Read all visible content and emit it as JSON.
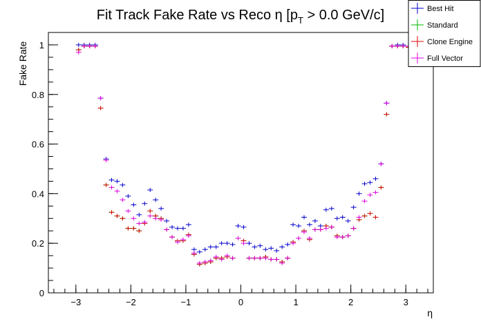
{
  "chart_data": {
    "type": "scatter",
    "title": "Fit Track Fake Rate vs Reco η [p_T > 0.0 GeV/c]",
    "title_main": "Fit Track Fake Rate vs Reco η [p",
    "title_sub": "T",
    "title_tail": " > 0.0 GeV/c]",
    "xlabel": "η",
    "ylabel": "Fake Rate",
    "xlim": [
      -3.5,
      3.5
    ],
    "ylim": [
      0,
      1.05
    ],
    "xticks": [
      -3,
      -2,
      -1,
      0,
      1,
      2,
      3
    ],
    "xtick_labels": [
      "−3",
      "−2",
      "−1",
      "0",
      "1",
      "2",
      "3"
    ],
    "yticks": [
      0,
      0.2,
      0.4,
      0.6,
      0.8,
      1
    ],
    "ytick_labels": [
      "0",
      "0.2",
      "0.4",
      "0.6",
      "0.8",
      "1"
    ],
    "bin_half_width": 0.05,
    "legend_position": "top-right",
    "series": [
      {
        "name": "Best Hit",
        "color": "#0000cc",
        "points": [
          [
            -2.95,
            1.0
          ],
          [
            -2.85,
            1.0
          ],
          [
            -2.75,
            1.0
          ],
          [
            -2.65,
            1.0
          ],
          [
            -2.55,
            0.785
          ],
          [
            -2.45,
            0.54
          ],
          [
            -2.35,
            0.455
          ],
          [
            -2.25,
            0.45
          ],
          [
            -2.15,
            0.435
          ],
          [
            -2.05,
            0.39
          ],
          [
            -1.95,
            0.355
          ],
          [
            -1.85,
            0.315
          ],
          [
            -1.75,
            0.36
          ],
          [
            -1.65,
            0.415
          ],
          [
            -1.55,
            0.375
          ],
          [
            -1.45,
            0.34
          ],
          [
            -1.35,
            0.29
          ],
          [
            -1.25,
            0.265
          ],
          [
            -1.15,
            0.26
          ],
          [
            -1.05,
            0.26
          ],
          [
            -0.95,
            0.275
          ],
          [
            -0.85,
            0.175
          ],
          [
            -0.75,
            0.165
          ],
          [
            -0.65,
            0.175
          ],
          [
            -0.55,
            0.185
          ],
          [
            -0.45,
            0.185
          ],
          [
            -0.35,
            0.2
          ],
          [
            -0.25,
            0.2
          ],
          [
            -0.15,
            0.195
          ],
          [
            -0.05,
            0.27
          ],
          [
            0.05,
            0.265
          ],
          [
            0.15,
            0.2
          ],
          [
            0.25,
            0.185
          ],
          [
            0.35,
            0.19
          ],
          [
            0.45,
            0.175
          ],
          [
            0.55,
            0.18
          ],
          [
            0.65,
            0.17
          ],
          [
            0.75,
            0.185
          ],
          [
            0.85,
            0.195
          ],
          [
            0.95,
            0.275
          ],
          [
            1.05,
            0.27
          ],
          [
            1.15,
            0.305
          ],
          [
            1.25,
            0.275
          ],
          [
            1.35,
            0.29
          ],
          [
            1.45,
            0.27
          ],
          [
            1.55,
            0.335
          ],
          [
            1.65,
            0.34
          ],
          [
            1.75,
            0.3
          ],
          [
            1.85,
            0.305
          ],
          [
            1.95,
            0.29
          ],
          [
            2.05,
            0.345
          ],
          [
            2.15,
            0.4
          ],
          [
            2.25,
            0.44
          ],
          [
            2.35,
            0.445
          ],
          [
            2.45,
            0.46
          ],
          [
            2.55,
            0.52
          ],
          [
            2.65,
            0.765
          ],
          [
            2.75,
            0.995
          ],
          [
            2.85,
            1.0
          ],
          [
            2.95,
            1.0
          ],
          [
            3.05,
            0.995
          ]
        ]
      },
      {
        "name": "Standard",
        "color": "#00bb00",
        "points": [
          [
            -2.95,
            0.98
          ],
          [
            -2.85,
            0.995
          ],
          [
            -2.75,
            0.995
          ],
          [
            -2.65,
            0.995
          ],
          [
            -2.55,
            0.745
          ],
          [
            -2.45,
            0.435
          ],
          [
            -2.35,
            0.325
          ],
          [
            -2.25,
            0.31
          ],
          [
            -2.15,
            0.3
          ],
          [
            -2.05,
            0.26
          ],
          [
            -1.95,
            0.26
          ],
          [
            -1.85,
            0.25
          ],
          [
            -1.75,
            0.28
          ],
          [
            -1.65,
            0.33
          ],
          [
            -1.55,
            0.31
          ],
          [
            -1.45,
            0.3
          ],
          [
            -1.35,
            0.255
          ],
          [
            -1.25,
            0.225
          ],
          [
            -1.15,
            0.21
          ],
          [
            -1.05,
            0.21
          ],
          [
            -0.95,
            0.235
          ],
          [
            -0.85,
            0.155
          ],
          [
            -0.75,
            0.115
          ],
          [
            -0.65,
            0.12
          ],
          [
            -0.55,
            0.125
          ],
          [
            -0.45,
            0.14
          ],
          [
            -0.35,
            0.14
          ],
          [
            -0.25,
            0.145
          ],
          [
            -0.15,
            0.14
          ],
          [
            -0.05,
            0.22
          ],
          [
            0.05,
            0.21
          ],
          [
            0.15,
            0.14
          ],
          [
            0.25,
            0.14
          ],
          [
            0.35,
            0.14
          ],
          [
            0.45,
            0.145
          ],
          [
            0.55,
            0.135
          ],
          [
            0.65,
            0.135
          ],
          [
            0.75,
            0.125
          ],
          [
            0.85,
            0.14
          ],
          [
            0.95,
            0.205
          ],
          [
            1.05,
            0.22
          ],
          [
            1.15,
            0.25
          ],
          [
            1.25,
            0.215
          ],
          [
            1.35,
            0.255
          ],
          [
            1.45,
            0.255
          ],
          [
            1.55,
            0.27
          ],
          [
            1.65,
            0.265
          ],
          [
            1.75,
            0.23
          ],
          [
            1.85,
            0.225
          ],
          [
            1.95,
            0.23
          ],
          [
            2.05,
            0.26
          ],
          [
            2.15,
            0.295
          ],
          [
            2.25,
            0.31
          ],
          [
            2.35,
            0.32
          ],
          [
            2.45,
            0.305
          ],
          [
            2.55,
            0.425
          ],
          [
            2.65,
            0.72
          ],
          [
            2.75,
            0.995
          ],
          [
            2.85,
            0.995
          ],
          [
            2.95,
            0.995
          ],
          [
            3.05,
            0.99
          ]
        ]
      },
      {
        "name": "Clone Engine",
        "color": "#dd0000",
        "points": [
          [
            -2.95,
            0.98
          ],
          [
            -2.85,
            0.995
          ],
          [
            -2.75,
            0.995
          ],
          [
            -2.65,
            0.995
          ],
          [
            -2.55,
            0.745
          ],
          [
            -2.45,
            0.435
          ],
          [
            -2.35,
            0.325
          ],
          [
            -2.25,
            0.31
          ],
          [
            -2.15,
            0.3
          ],
          [
            -2.05,
            0.26
          ],
          [
            -1.95,
            0.26
          ],
          [
            -1.85,
            0.25
          ],
          [
            -1.75,
            0.28
          ],
          [
            -1.65,
            0.33
          ],
          [
            -1.55,
            0.31
          ],
          [
            -1.45,
            0.3
          ],
          [
            -1.35,
            0.255
          ],
          [
            -1.25,
            0.225
          ],
          [
            -1.15,
            0.21
          ],
          [
            -1.05,
            0.21
          ],
          [
            -0.95,
            0.235
          ],
          [
            -0.85,
            0.155
          ],
          [
            -0.75,
            0.115
          ],
          [
            -0.65,
            0.12
          ],
          [
            -0.55,
            0.125
          ],
          [
            -0.45,
            0.14
          ],
          [
            -0.35,
            0.14
          ],
          [
            -0.25,
            0.145
          ],
          [
            -0.15,
            0.14
          ],
          [
            -0.05,
            0.22
          ],
          [
            0.05,
            0.21
          ],
          [
            0.15,
            0.14
          ],
          [
            0.25,
            0.14
          ],
          [
            0.35,
            0.14
          ],
          [
            0.45,
            0.145
          ],
          [
            0.55,
            0.135
          ],
          [
            0.65,
            0.135
          ],
          [
            0.75,
            0.125
          ],
          [
            0.85,
            0.14
          ],
          [
            0.95,
            0.205
          ],
          [
            1.05,
            0.22
          ],
          [
            1.15,
            0.25
          ],
          [
            1.25,
            0.215
          ],
          [
            1.35,
            0.255
          ],
          [
            1.45,
            0.255
          ],
          [
            1.55,
            0.27
          ],
          [
            1.65,
            0.265
          ],
          [
            1.75,
            0.23
          ],
          [
            1.85,
            0.225
          ],
          [
            1.95,
            0.23
          ],
          [
            2.05,
            0.26
          ],
          [
            2.15,
            0.295
          ],
          [
            2.25,
            0.31
          ],
          [
            2.35,
            0.32
          ],
          [
            2.45,
            0.305
          ],
          [
            2.55,
            0.425
          ],
          [
            2.65,
            0.72
          ],
          [
            2.75,
            0.995
          ],
          [
            2.85,
            0.995
          ],
          [
            2.95,
            0.995
          ],
          [
            3.05,
            0.99
          ]
        ]
      },
      {
        "name": "Full Vector",
        "color": "#dd00dd",
        "points": [
          [
            -2.95,
            0.97
          ],
          [
            -2.85,
            0.995
          ],
          [
            -2.75,
            0.995
          ],
          [
            -2.65,
            0.995
          ],
          [
            -2.55,
            0.785
          ],
          [
            -2.45,
            0.535
          ],
          [
            -2.35,
            0.425
          ],
          [
            -2.25,
            0.41
          ],
          [
            -2.15,
            0.375
          ],
          [
            -2.05,
            0.33
          ],
          [
            -1.95,
            0.3
          ],
          [
            -1.85,
            0.28
          ],
          [
            -1.75,
            0.285
          ],
          [
            -1.65,
            0.31
          ],
          [
            -1.55,
            0.3
          ],
          [
            -1.45,
            0.295
          ],
          [
            -1.35,
            0.255
          ],
          [
            -1.25,
            0.225
          ],
          [
            -1.15,
            0.205
          ],
          [
            -1.05,
            0.215
          ],
          [
            -0.95,
            0.23
          ],
          [
            -0.85,
            0.16
          ],
          [
            -0.75,
            0.12
          ],
          [
            -0.65,
            0.125
          ],
          [
            -0.55,
            0.13
          ],
          [
            -0.45,
            0.145
          ],
          [
            -0.35,
            0.135
          ],
          [
            -0.25,
            0.15
          ],
          [
            -0.15,
            0.14
          ],
          [
            -0.05,
            0.22
          ],
          [
            0.05,
            0.2
          ],
          [
            0.15,
            0.14
          ],
          [
            0.25,
            0.14
          ],
          [
            0.35,
            0.14
          ],
          [
            0.45,
            0.14
          ],
          [
            0.55,
            0.135
          ],
          [
            0.65,
            0.135
          ],
          [
            0.75,
            0.12
          ],
          [
            0.85,
            0.14
          ],
          [
            0.95,
            0.2
          ],
          [
            1.05,
            0.22
          ],
          [
            1.15,
            0.245
          ],
          [
            1.25,
            0.22
          ],
          [
            1.35,
            0.255
          ],
          [
            1.45,
            0.255
          ],
          [
            1.55,
            0.26
          ],
          [
            1.65,
            0.265
          ],
          [
            1.75,
            0.225
          ],
          [
            1.85,
            0.225
          ],
          [
            1.95,
            0.23
          ],
          [
            2.05,
            0.26
          ],
          [
            2.15,
            0.305
          ],
          [
            2.25,
            0.37
          ],
          [
            2.35,
            0.395
          ],
          [
            2.45,
            0.405
          ],
          [
            2.55,
            0.52
          ],
          [
            2.65,
            0.765
          ],
          [
            2.75,
            0.995
          ],
          [
            2.85,
            0.995
          ],
          [
            2.95,
            0.995
          ],
          [
            3.05,
            0.995
          ]
        ]
      }
    ]
  }
}
